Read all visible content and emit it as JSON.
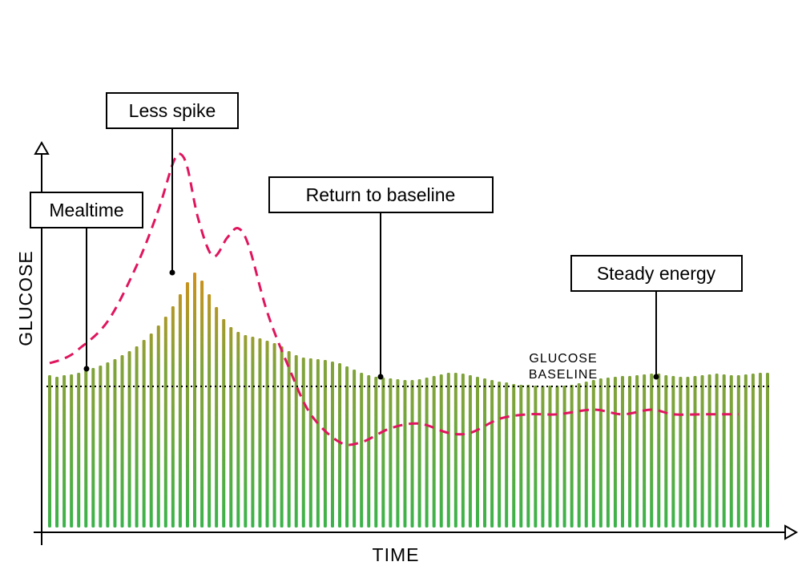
{
  "chart_data": {
    "type": "bar",
    "xlabel": "TIME",
    "ylabel": "GLUCOSE",
    "baseline_label": [
      "GLUCOSE",
      "BASELINE"
    ],
    "grid": false,
    "legend": "none",
    "colors": {
      "bar_low": "#3bb34a",
      "bar_mid": "#7fa33a",
      "bar_high": "#d0901a",
      "dashed_line": "#e0155e",
      "baseline": "#000000"
    },
    "annotations": [
      {
        "label": "Mealtime"
      },
      {
        "label": "Less spike"
      },
      {
        "label": "Return to baseline"
      },
      {
        "label": "Steady energy"
      }
    ],
    "bars": [
      190,
      188,
      190,
      191,
      193,
      196,
      199,
      202,
      206,
      210,
      215,
      220,
      226,
      234,
      242,
      252,
      263,
      276,
      291,
      306,
      318,
      308,
      291,
      275,
      260,
      250,
      244,
      240,
      238,
      236,
      233,
      230,
      226,
      220,
      215,
      212,
      211,
      210,
      209,
      207,
      205,
      201,
      197,
      193,
      190,
      188,
      187,
      186,
      185,
      184,
      184,
      185,
      187,
      189,
      191,
      193,
      193,
      192,
      190,
      188,
      186,
      184,
      182,
      181,
      179,
      178,
      178,
      177,
      177,
      177,
      177,
      177,
      178,
      180,
      182,
      184,
      186,
      187,
      188,
      189,
      189,
      190,
      191,
      192,
      192,
      190,
      189,
      188,
      188,
      189,
      190,
      191,
      192,
      191,
      190,
      190,
      191,
      192,
      193,
      193
    ],
    "dashed_line": [
      [
        0,
        0.5
      ],
      [
        2,
        0.6
      ],
      [
        4,
        0.8
      ],
      [
        8,
        1.4
      ],
      [
        12,
        2.6
      ],
      [
        15,
        3.8
      ],
      [
        17,
        4.8
      ],
      [
        18,
        5.0
      ],
      [
        19,
        4.7
      ],
      [
        20.5,
        3.6
      ],
      [
        22.5,
        2.8
      ],
      [
        24.5,
        3.2
      ],
      [
        26,
        3.4
      ],
      [
        27.5,
        3.0
      ],
      [
        30,
        1.6
      ],
      [
        33,
        0.4
      ],
      [
        36,
        -0.6
      ],
      [
        40,
        -1.2
      ],
      [
        43,
        -1.2
      ],
      [
        47,
        -0.9
      ],
      [
        51,
        -0.8
      ],
      [
        55,
        -1.0
      ],
      [
        58,
        -1.0
      ],
      [
        62,
        -0.7
      ],
      [
        66,
        -0.6
      ],
      [
        70,
        -0.6
      ],
      [
        75,
        -0.5
      ],
      [
        79,
        -0.6
      ],
      [
        83,
        -0.5
      ],
      [
        86,
        -0.6
      ],
      [
        90,
        -0.6
      ],
      [
        93,
        -0.6
      ],
      [
        95,
        -0.6
      ]
    ]
  }
}
